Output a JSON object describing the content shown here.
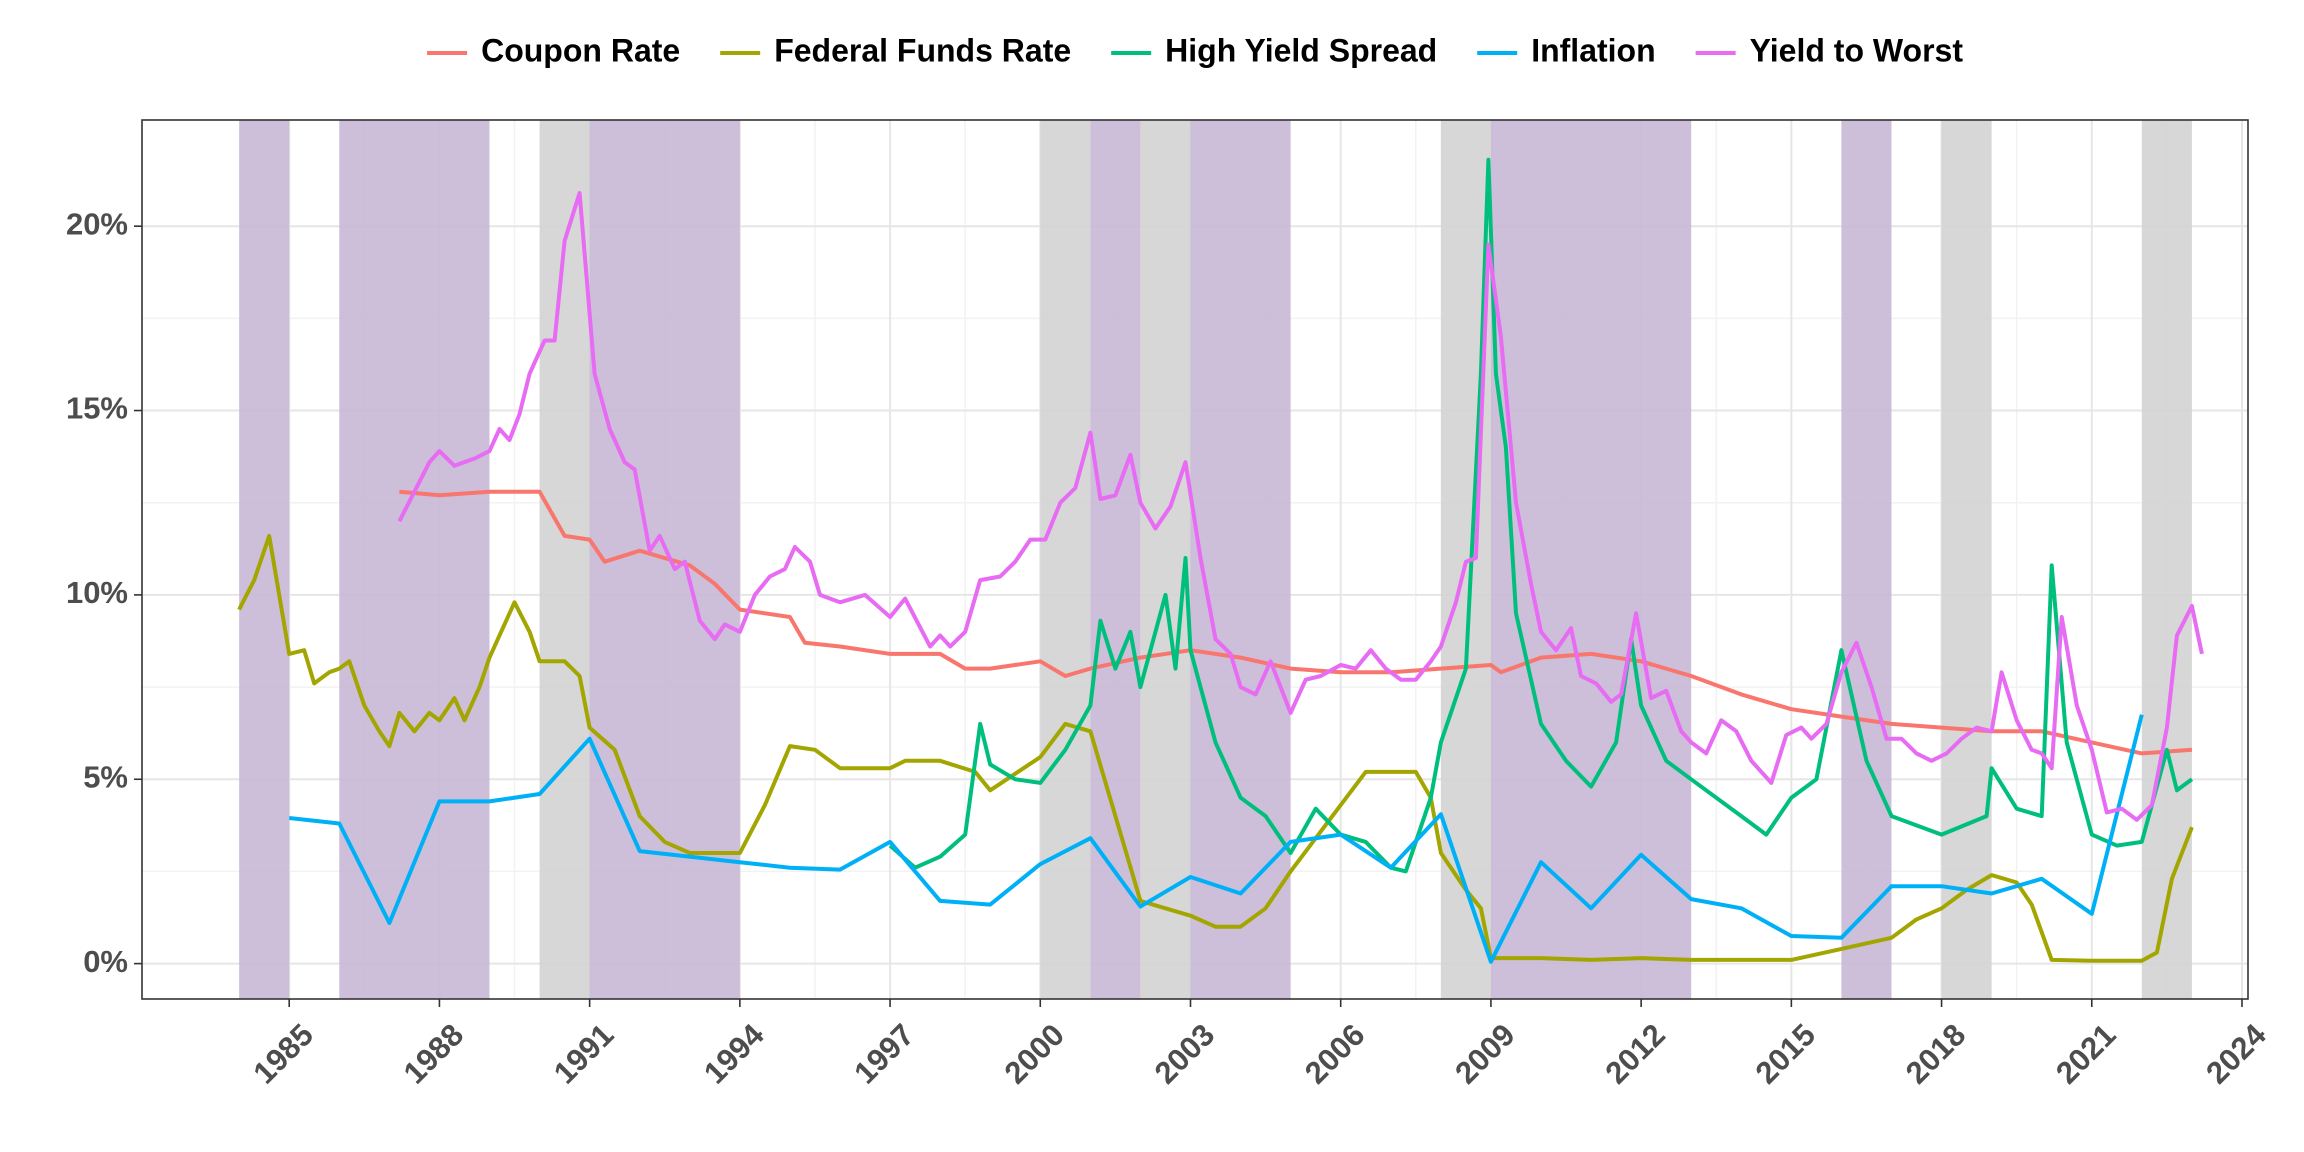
{
  "chart_data": {
    "type": "line",
    "xlim": [
      1982.06,
      2024.12
    ],
    "xticks": [
      1985,
      1988,
      1991,
      1994,
      1997,
      2000,
      2003,
      2006,
      2009,
      2012,
      2015,
      2018,
      2021,
      2024
    ],
    "ylim": [
      -0.96,
      22.88
    ],
    "yticks": [
      {
        "value": 0,
        "label": "0%"
      },
      {
        "value": 5,
        "label": "5%"
      },
      {
        "value": 10,
        "label": "10%"
      },
      {
        "value": 15,
        "label": "15%"
      },
      {
        "value": 20,
        "label": "20%"
      }
    ],
    "grid": true,
    "legend": "top",
    "shaded_regions": [
      {
        "start": 1984,
        "end": 1985,
        "color": "#c8b8d5"
      },
      {
        "start": 1986,
        "end": 1989,
        "color": "#c8b8d5"
      },
      {
        "start": 1990,
        "end": 1991,
        "color": "#d3d3d3"
      },
      {
        "start": 1991,
        "end": 1994,
        "color": "#c8b8d5"
      },
      {
        "start": 2000,
        "end": 2001,
        "color": "#d3d3d3"
      },
      {
        "start": 2001,
        "end": 2002,
        "color": "#c8b8d5"
      },
      {
        "start": 2002,
        "end": 2003,
        "color": "#d3d3d3"
      },
      {
        "start": 2003,
        "end": 2005,
        "color": "#c8b8d5"
      },
      {
        "start": 2008,
        "end": 2009,
        "color": "#d3d3d3"
      },
      {
        "start": 2009,
        "end": 2013,
        "color": "#c8b8d5"
      },
      {
        "start": 2016,
        "end": 2017,
        "color": "#c8b8d5"
      },
      {
        "start": 2018,
        "end": 2019,
        "color": "#d3d3d3"
      },
      {
        "start": 2022,
        "end": 2023,
        "color": "#d3d3d3"
      }
    ],
    "series": [
      {
        "name": "Coupon Rate",
        "color": "#f8766d",
        "x": [
          1987.2,
          1988,
          1989,
          1990,
          1990.5,
          1991,
          1991.3,
          1992,
          1993,
          1993.5,
          1994,
          1995,
          1995.3,
          1996,
          1997,
          1998,
          1998.5,
          1999,
          2000,
          2000.5,
          2001,
          2002,
          2003,
          2004,
          2005,
          2006,
          2007,
          2008,
          2009,
          2009.2,
          2010,
          2011,
          2012,
          2013,
          2014,
          2015,
          2016,
          2017,
          2018,
          2019,
          2020,
          2021,
          2022,
          2023
        ],
        "values": [
          12.8,
          12.7,
          12.8,
          12.8,
          11.6,
          11.5,
          10.9,
          11.2,
          10.8,
          10.3,
          9.6,
          9.4,
          8.7,
          8.6,
          8.4,
          8.4,
          8.0,
          8.0,
          8.2,
          7.8,
          8.0,
          8.3,
          8.5,
          8.3,
          8.0,
          7.9,
          7.9,
          8.0,
          8.1,
          7.9,
          8.3,
          8.4,
          8.2,
          7.8,
          7.3,
          6.9,
          6.7,
          6.5,
          6.4,
          6.3,
          6.3,
          6.0,
          5.7,
          5.8
        ]
      },
      {
        "name": "Federal Funds Rate",
        "color": "#a3a500",
        "x": [
          1984,
          1984.3,
          1984.6,
          1984.8,
          1985,
          1985.3,
          1985.5,
          1985.8,
          1986,
          1986.2,
          1986.5,
          1986.8,
          1987,
          1987.2,
          1987.5,
          1987.8,
          1988,
          1988.3,
          1988.5,
          1988.8,
          1989,
          1989.5,
          1989.8,
          1990,
          1990.5,
          1990.8,
          1991,
          1991.5,
          1992,
          1992.5,
          1993,
          1994,
          1994.5,
          1995,
          1995.5,
          1996,
          1997,
          1997.3,
          1998,
          1998.7,
          1999,
          2000,
          2000.5,
          2001,
          2001.5,
          2002,
          2003,
          2003.5,
          2004,
          2004.5,
          2005,
          2006,
          2006.5,
          2007.5,
          2007.8,
          2008,
          2008.5,
          2008.8,
          2009,
          2010,
          2011,
          2012,
          2013,
          2014,
          2015,
          2016,
          2017,
          2017.5,
          2018,
          2018.5,
          2019,
          2019.5,
          2019.8,
          2020.2,
          2021,
          2022,
          2022.3,
          2022.6,
          2023
        ],
        "values": [
          9.6,
          10.4,
          11.6,
          10.0,
          8.4,
          8.5,
          7.6,
          7.9,
          8.0,
          8.2,
          7.0,
          6.3,
          5.9,
          6.8,
          6.3,
          6.8,
          6.6,
          7.2,
          6.6,
          7.5,
          8.3,
          9.8,
          9.0,
          8.2,
          8.2,
          7.8,
          6.4,
          5.8,
          4.0,
          3.3,
          3.0,
          3.0,
          4.3,
          5.9,
          5.8,
          5.3,
          5.3,
          5.5,
          5.5,
          5.2,
          4.7,
          5.6,
          6.5,
          6.3,
          4.0,
          1.7,
          1.3,
          1.0,
          1.0,
          1.5,
          2.5,
          4.3,
          5.2,
          5.2,
          4.5,
          3.0,
          2.0,
          1.5,
          0.15,
          0.15,
          0.1,
          0.15,
          0.1,
          0.1,
          0.1,
          0.4,
          0.7,
          1.2,
          1.5,
          2.0,
          2.4,
          2.2,
          1.6,
          0.1,
          0.08,
          0.08,
          0.3,
          2.3,
          3.7
        ]
      },
      {
        "name": "High Yield Spread",
        "color": "#00bf7d",
        "x": [
          1997,
          1997.5,
          1998,
          1998.5,
          1998.8,
          1999,
          1999.5,
          2000,
          2000.5,
          2001,
          2001.2,
          2001.5,
          2001.8,
          2002,
          2002.5,
          2002.7,
          2002.9,
          2003,
          2003.5,
          2004,
          2004.5,
          2005,
          2005.5,
          2006,
          2006.5,
          2007,
          2007.3,
          2007.8,
          2008,
          2008.5,
          2008.8,
          2008.95,
          2009.1,
          2009.3,
          2009.5,
          2010,
          2010.5,
          2011,
          2011.5,
          2011.8,
          2012,
          2012.5,
          2013,
          2014,
          2014.5,
          2015,
          2015.5,
          2016,
          2016.5,
          2017,
          2018,
          2018.9,
          2019,
          2019.5,
          2020,
          2020.2,
          2020.5,
          2021,
          2021.5,
          2022,
          2022.5,
          2022.7,
          2023
        ],
        "values": [
          3.2,
          2.6,
          2.9,
          3.5,
          6.5,
          5.4,
          5.0,
          4.9,
          5.8,
          7.0,
          9.3,
          8.0,
          9.0,
          7.5,
          10.0,
          8.0,
          11.0,
          8.5,
          6.0,
          4.5,
          4.0,
          3.0,
          4.2,
          3.5,
          3.3,
          2.6,
          2.5,
          4.5,
          6.0,
          8.0,
          16.0,
          21.8,
          16.0,
          14.0,
          9.5,
          6.5,
          5.5,
          4.8,
          6.0,
          8.8,
          7.0,
          5.5,
          5.0,
          4.0,
          3.5,
          4.5,
          5.0,
          8.5,
          5.5,
          4.0,
          3.5,
          4.0,
          5.3,
          4.2,
          4.0,
          10.8,
          6.0,
          3.5,
          3.2,
          3.3,
          5.8,
          4.7,
          5.0
        ]
      },
      {
        "name": "Inflation",
        "color": "#00b0f6",
        "x": [
          1985,
          1986,
          1987,
          1988,
          1989,
          1990,
          1991,
          1992,
          1994,
          1995,
          1996,
          1997,
          1998,
          1999,
          2000,
          2001,
          2002,
          2003,
          2004,
          2005,
          2006,
          2007,
          2008,
          2009,
          2010,
          2011,
          2012,
          2013,
          2014,
          2015,
          2016,
          2017,
          2018,
          2019,
          2020,
          2021,
          2022
        ],
        "values": [
          3.95,
          3.8,
          1.1,
          4.4,
          4.4,
          4.6,
          6.1,
          3.05,
          2.75,
          2.6,
          2.55,
          3.3,
          1.7,
          1.6,
          2.7,
          3.4,
          1.55,
          2.35,
          1.9,
          3.3,
          3.5,
          2.6,
          4.05,
          0.05,
          2.75,
          1.5,
          2.95,
          1.75,
          1.5,
          0.75,
          0.7,
          2.1,
          2.1,
          1.9,
          2.3,
          1.35,
          6.75
        ]
      },
      {
        "name": "Yield to Worst",
        "color": "#e76bf3",
        "x": [
          1987.2,
          1987.5,
          1987.8,
          1988,
          1988.3,
          1988.7,
          1989,
          1989.2,
          1989.4,
          1989.6,
          1989.8,
          1990.1,
          1990.3,
          1990.5,
          1990.8,
          1991.1,
          1991.4,
          1991.7,
          1991.9,
          1992.2,
          1992.4,
          1992.7,
          1992.9,
          1993.2,
          1993.5,
          1993.7,
          1994,
          1994.3,
          1994.6,
          1994.9,
          1995.1,
          1995.4,
          1995.6,
          1996,
          1996.5,
          1997,
          1997.3,
          1997.8,
          1998,
          1998.2,
          1998.5,
          1998.8,
          1999.2,
          1999.5,
          1999.8,
          2000.1,
          2000.4,
          2000.7,
          2001,
          2001.2,
          2001.5,
          2001.8,
          2002,
          2002.3,
          2002.6,
          2002.9,
          2003.2,
          2003.5,
          2003.8,
          2004,
          2004.3,
          2004.6,
          2004.8,
          2005,
          2005.3,
          2005.6,
          2006,
          2006.3,
          2006.6,
          2006.9,
          2007.2,
          2007.5,
          2007.8,
          2008,
          2008.3,
          2008.5,
          2008.7,
          2008.95,
          2009.2,
          2009.5,
          2009.8,
          2010,
          2010.3,
          2010.6,
          2010.8,
          2011.1,
          2011.4,
          2011.6,
          2011.9,
          2012.2,
          2012.5,
          2012.8,
          2013,
          2013.3,
          2013.6,
          2013.9,
          2014.2,
          2014.6,
          2014.9,
          2015.2,
          2015.4,
          2015.7,
          2016,
          2016.3,
          2016.6,
          2016.9,
          2017.2,
          2017.5,
          2017.8,
          2018.1,
          2018.4,
          2018.7,
          2019,
          2019.2,
          2019.5,
          2019.8,
          2020,
          2020.2,
          2020.4,
          2020.7,
          2021,
          2021.3,
          2021.6,
          2021.9,
          2022.2,
          2022.5,
          2022.7,
          2023,
          2023.2
        ],
        "values": [
          12.0,
          12.8,
          13.6,
          13.9,
          13.5,
          13.7,
          13.9,
          14.5,
          14.2,
          14.9,
          16.0,
          16.9,
          16.9,
          19.6,
          20.9,
          16.0,
          14.5,
          13.6,
          13.4,
          11.2,
          11.6,
          10.7,
          10.9,
          9.3,
          8.8,
          9.2,
          9.0,
          10.0,
          10.5,
          10.7,
          11.3,
          10.9,
          10.0,
          9.8,
          10.0,
          9.4,
          9.9,
          8.6,
          8.9,
          8.6,
          9.0,
          10.4,
          10.5,
          10.9,
          11.5,
          11.5,
          12.5,
          12.9,
          14.4,
          12.6,
          12.7,
          13.8,
          12.5,
          11.8,
          12.4,
          13.6,
          11.0,
          8.8,
          8.4,
          7.5,
          7.3,
          8.2,
          7.5,
          6.8,
          7.7,
          7.8,
          8.1,
          8.0,
          8.5,
          8.0,
          7.7,
          7.7,
          8.2,
          8.6,
          9.8,
          10.9,
          11.0,
          19.5,
          17.0,
          12.5,
          10.3,
          9.0,
          8.5,
          9.1,
          7.8,
          7.6,
          7.1,
          7.3,
          9.5,
          7.2,
          7.4,
          6.3,
          6.0,
          5.7,
          6.6,
          6.3,
          5.5,
          4.9,
          6.2,
          6.4,
          6.1,
          6.5,
          7.9,
          8.7,
          7.5,
          6.1,
          6.1,
          5.7,
          5.5,
          5.7,
          6.1,
          6.4,
          6.3,
          7.9,
          6.6,
          5.8,
          5.7,
          5.3,
          9.4,
          7.0,
          5.8,
          4.1,
          4.2,
          3.9,
          4.3,
          6.4,
          8.9,
          9.7,
          8.4
        ]
      }
    ]
  }
}
